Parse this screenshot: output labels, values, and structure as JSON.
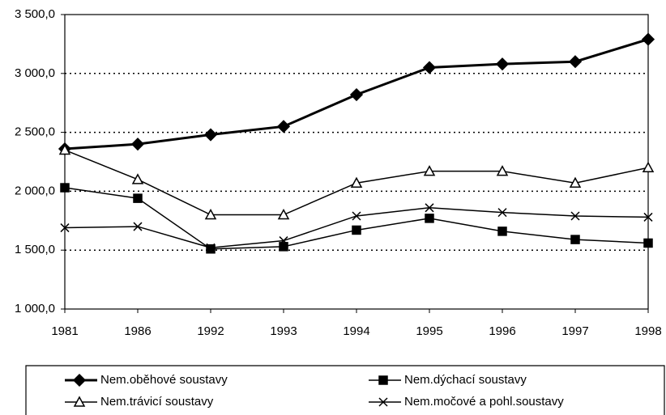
{
  "chart_data": {
    "type": "line",
    "categories": [
      "1981",
      "1986",
      "1992",
      "1993",
      "1994",
      "1995",
      "1996",
      "1997",
      "1998"
    ],
    "series": [
      {
        "name": "Nem.oběhové soustavy",
        "color": "#000000",
        "marker": "diamond",
        "width": 3,
        "values": [
          2360,
          2400,
          2480,
          2550,
          2820,
          3050,
          3080,
          3100,
          3290
        ]
      },
      {
        "name": "Nem.dýchací soustavy",
        "color": "#000000",
        "marker": "square",
        "width": 1.5,
        "values": [
          2030,
          1940,
          1510,
          1530,
          1670,
          1770,
          1660,
          1590,
          1560
        ]
      },
      {
        "name": "Nem.trávicí soustavy",
        "color": "#000000",
        "marker": "triangle",
        "width": 1.5,
        "values": [
          2350,
          2100,
          1800,
          1800,
          2070,
          2170,
          2170,
          2070,
          2200
        ]
      },
      {
        "name": "Nem.močové a pohl.soustavy",
        "color": "#000000",
        "marker": "cross",
        "width": 1.5,
        "values": [
          1690,
          1700,
          1520,
          1580,
          1790,
          1860,
          1820,
          1790,
          1780
        ]
      }
    ],
    "ylim": [
      1000,
      3500
    ],
    "yticks": [
      {
        "value": 1000,
        "label": "1 000,0"
      },
      {
        "value": 1500,
        "label": "1 500,0"
      },
      {
        "value": 2000,
        "label": "2 000,0"
      },
      {
        "value": 2500,
        "label": "2 500,0"
      },
      {
        "value": 3000,
        "label": "3 000,0"
      },
      {
        "value": 3500,
        "label": "3 500,0"
      }
    ],
    "grid": true,
    "legend": "bottom"
  }
}
